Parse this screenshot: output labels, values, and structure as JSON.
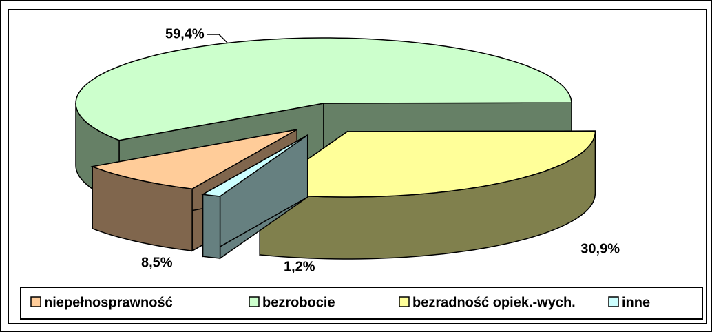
{
  "chart_data": {
    "type": "pie",
    "categories": [
      "niepełnosprawność",
      "bezrobocie",
      "bezradność opiek.-wych.",
      "inne"
    ],
    "values": [
      8.5,
      59.4,
      30.9,
      1.2
    ],
    "value_labels": [
      "8,5%",
      "59,4%",
      "30,9%",
      "1,2%"
    ],
    "colors": [
      "#ffcc99",
      "#ccffcc",
      "#ffff99",
      "#ccffff"
    ],
    "legend": "bottom"
  }
}
